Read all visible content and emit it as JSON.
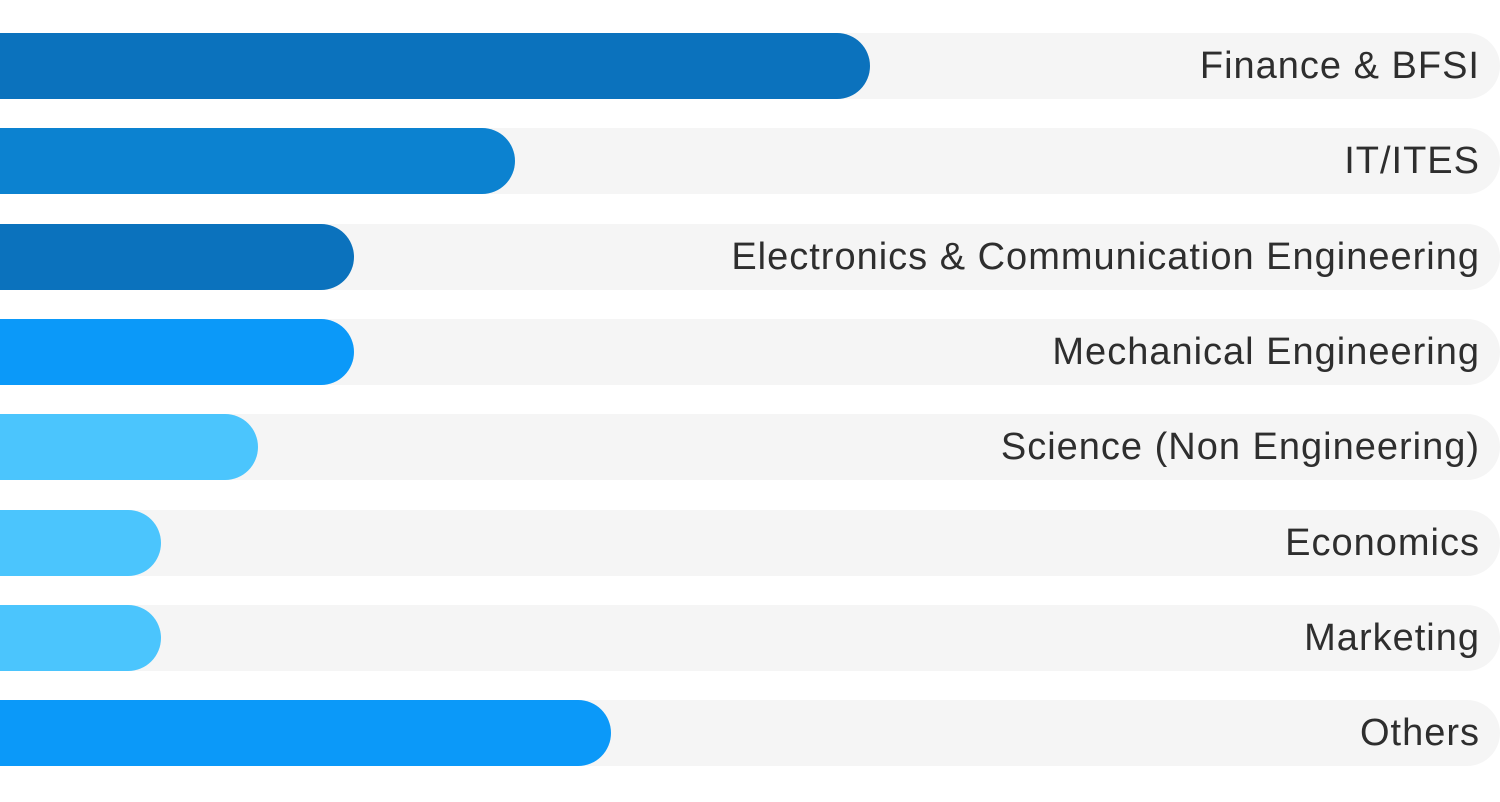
{
  "chart_data": {
    "type": "bar",
    "orientation": "horizontal",
    "categories": [
      "Finance & BFSI",
      "IT/ITES",
      "Electronics & Communication Engineering",
      "Mechanical Engineering",
      "Science (Non Engineering)",
      "Economics",
      "Marketing",
      "Others"
    ],
    "values": [
      58,
      34.3,
      23.6,
      23.6,
      17.2,
      10.7,
      10.7,
      40.7
    ],
    "xlim": [
      0,
      100
    ],
    "bar_colors": [
      "#0b72bd",
      "#0c82d0",
      "#0b72bd",
      "#0b99f9",
      "#4bc5fd",
      "#4bc5fd",
      "#4bc5fd",
      "#0b99f9"
    ],
    "track_color": "#f5f5f5",
    "grid": false,
    "legend": "none"
  }
}
